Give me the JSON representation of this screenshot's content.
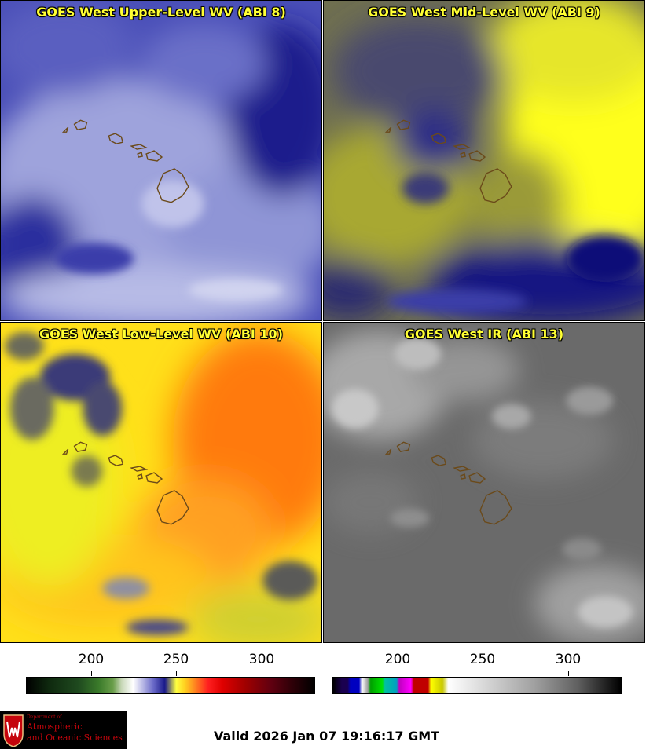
{
  "panels": [
    {
      "title": "GOES West Upper-Level WV (ABI 8)"
    },
    {
      "title": "GOES West Mid-Level WV (ABI 9)"
    },
    {
      "title": "GOES West Low-Level WV (ABI 10)"
    },
    {
      "title": "GOES West IR (ABI 13)"
    }
  ],
  "colorbars": [
    {
      "ticks": [
        "200",
        "250",
        "300"
      ]
    },
    {
      "ticks": [
        "200",
        "250",
        "300"
      ]
    }
  ],
  "logo": {
    "line1": "Department of",
    "line2": "Atmospheric",
    "line3": "and Oceanic Sciences"
  },
  "valid_time": "Valid 2026 Jan 07 19:16:17 GMT",
  "colors": {
    "title_text": "#ffff33",
    "island_outline": "#6b4a1a"
  }
}
